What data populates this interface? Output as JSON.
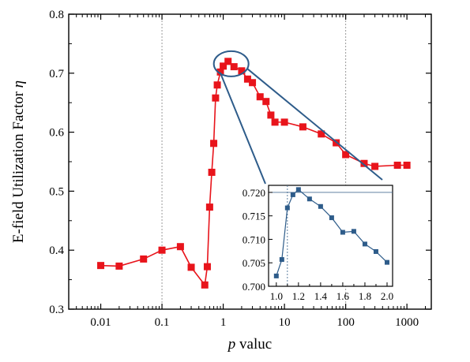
{
  "chart_data": [
    {
      "type": "line",
      "title": "",
      "xlabel_italic": "p",
      "xlabel_rest": " valuc",
      "ylabel_main": "E-field Utilization Factor ",
      "ylabel_symbol": "η",
      "x_scale": "log",
      "xlim": [
        0.003,
        2500
      ],
      "ylim": [
        0.3,
        0.8
      ],
      "x_ticks": [
        0.01,
        0.1,
        1,
        10,
        100,
        1000
      ],
      "x_tick_labels": [
        "0.01",
        "0.1",
        "1",
        "10",
        "100",
        "1000"
      ],
      "y_ticks": [
        0.3,
        0.4,
        0.5,
        0.6,
        0.7,
        0.8
      ],
      "y_tick_labels": [
        "0.3",
        "0.4",
        "0.5",
        "0.6",
        "0.7",
        "0.8"
      ],
      "reference_lines_x": [
        0.1,
        100
      ],
      "grid": false,
      "series": [
        {
          "color": "#e8141b",
          "marker": "square",
          "x": [
            0.01,
            0.02,
            0.05,
            0.1,
            0.2,
            0.3,
            0.5,
            0.55,
            0.6,
            0.65,
            0.7,
            0.75,
            0.8,
            0.9,
            1.0,
            1.2,
            1.5,
            2,
            2.5,
            3,
            4,
            5,
            6,
            7,
            10,
            20,
            40,
            70,
            100,
            200,
            300,
            700,
            1000
          ],
          "y": [
            0.374,
            0.373,
            0.385,
            0.4,
            0.406,
            0.371,
            0.341,
            0.372,
            0.473,
            0.532,
            0.581,
            0.658,
            0.68,
            0.702,
            0.712,
            0.72,
            0.711,
            0.704,
            0.69,
            0.684,
            0.66,
            0.652,
            0.629,
            0.617,
            0.617,
            0.609,
            0.597,
            0.582,
            0.562,
            0.547,
            0.542,
            0.544,
            0.544
          ]
        }
      ]
    },
    {
      "type": "line",
      "title": "",
      "xlim": [
        0.93,
        2.05
      ],
      "ylim": [
        0.7,
        0.7215
      ],
      "x_ticks": [
        1.0,
        1.2,
        1.4,
        1.6,
        1.8,
        2.0
      ],
      "x_tick_labels": [
        "1.0",
        "1.2",
        "1.4",
        "1.6",
        "1.8",
        "2.0"
      ],
      "y_ticks": [
        0.7,
        0.705,
        0.71,
        0.715,
        0.72
      ],
      "y_tick_labels": [
        "0.700",
        "0.705",
        "0.710",
        "0.715",
        "0.720"
      ],
      "reference_line_y": 0.72,
      "reference_line_x": 1.1,
      "series": [
        {
          "color": "#2e5c8a",
          "marker": "square",
          "x": [
            1.0,
            1.05,
            1.1,
            1.15,
            1.2,
            1.3,
            1.4,
            1.5,
            1.6,
            1.7,
            1.8,
            1.9,
            2.0
          ],
          "y": [
            0.7022,
            0.7057,
            0.7167,
            0.7195,
            0.7206,
            0.7186,
            0.717,
            0.7146,
            0.7115,
            0.7117,
            0.709,
            0.7074,
            0.7051
          ]
        }
      ]
    }
  ]
}
